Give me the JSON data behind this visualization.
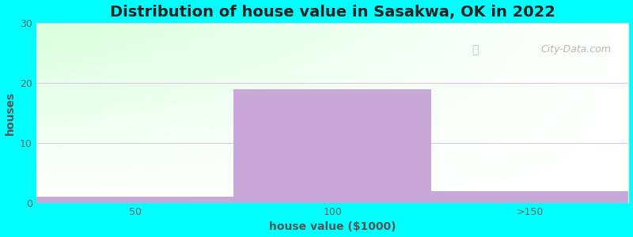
{
  "title": "Distribution of house value in Sasakwa, OK in 2022",
  "xlabel": "house value ($1000)",
  "ylabel": "houses",
  "categories": [
    "50",
    "100",
    ">150"
  ],
  "values": [
    1,
    19,
    2
  ],
  "bar_color": "#c8a8d8",
  "background_color": "#00ffff",
  "ylim": [
    0,
    30
  ],
  "yticks": [
    0,
    10,
    20,
    30
  ],
  "title_fontsize": 14,
  "label_fontsize": 10,
  "tick_fontsize": 9,
  "title_color": "#222222",
  "label_color": "#555555",
  "tick_color": "#666666",
  "grid_color": "#e0c8e0",
  "watermark_text": "City-Data.com"
}
